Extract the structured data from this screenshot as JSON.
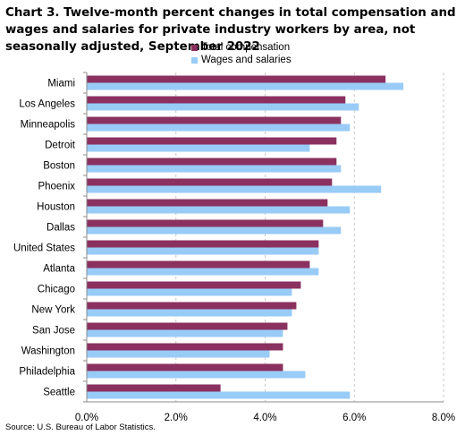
{
  "title": "Chart 3. Twelve-month percent changes in total compensation and wages and salaries for private industry workers by area, not seasonally adjusted, September 2022",
  "source": "Source: U.S. Bureau of Labor Statistics.",
  "colors": {
    "total_compensation": "#8a3160",
    "wages_and_salaries": "#99cbf7",
    "gridline": "#c8c8c8",
    "axis": "#8c8c8c"
  },
  "legend": {
    "position": "top-center",
    "items": [
      "Total compensation",
      "Wages and salaries"
    ]
  },
  "chart_data": {
    "type": "bar",
    "orientation": "horizontal",
    "title": "Chart 3. Twelve-month percent changes in total compensation and wages and salaries for private industry workers by area, not seasonally adjusted, September 2022",
    "xlabel": "",
    "ylabel": "",
    "xlim": [
      0,
      8
    ],
    "x_ticks": [
      "0.0%",
      "2.0%",
      "4.0%",
      "6.0%",
      "8.0%"
    ],
    "grid": "vertical dashed",
    "categories": [
      "Miami",
      "Los Angeles",
      "Minneapolis",
      "Detroit",
      "Boston",
      "Phoenix",
      "Houston",
      "Dallas",
      "United States",
      "Atlanta",
      "Chicago",
      "New York",
      "San Jose",
      "Washington",
      "Philadelphia",
      "Seattle"
    ],
    "series": [
      {
        "name": "Total compensation",
        "values": [
          6.7,
          5.8,
          5.7,
          5.6,
          5.6,
          5.5,
          5.4,
          5.3,
          5.2,
          5.0,
          4.8,
          4.7,
          4.5,
          4.4,
          4.4,
          3.0
        ]
      },
      {
        "name": "Wages and salaries",
        "values": [
          7.1,
          6.1,
          5.9,
          5.0,
          5.7,
          6.6,
          5.9,
          5.7,
          5.2,
          5.2,
          4.6,
          4.6,
          4.4,
          4.1,
          4.9,
          5.9
        ]
      }
    ]
  }
}
